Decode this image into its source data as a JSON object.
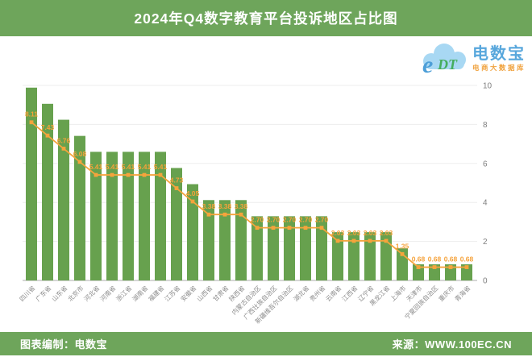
{
  "header": {
    "title": "2024年Q4数字教育平台投诉地区占比图"
  },
  "logo": {
    "brand": "电数宝",
    "tagline": "电商大数据库",
    "monogram": "eDT",
    "cloud_color": "#A8D8F3",
    "brand_color": "#58A7DC",
    "monogram_e_color": "#4D9FD8",
    "monogram_dt_color": "#45AD5E"
  },
  "chart_data": {
    "type": "bar",
    "subtype": "bar-with-line-overlay",
    "title": "2024年Q4数字教育平台投诉地区占比图",
    "categories": [
      "四川省",
      "广东省",
      "山东省",
      "北京市",
      "河北省",
      "河南省",
      "浙江省",
      "湖南省",
      "福建省",
      "江苏省",
      "安徽省",
      "山西省",
      "甘肃省",
      "陕西省",
      "内蒙古自治区",
      "广西壮族自治区",
      "新疆维吾尔自治区",
      "湖北省",
      "贵州省",
      "云南省",
      "江西省",
      "辽宁省",
      "黑龙江省",
      "上海市",
      "天津市",
      "宁夏回族自治区",
      "重庆市",
      "青海省"
    ],
    "values": [
      8.11,
      7.43,
      6.76,
      6.08,
      5.41,
      5.41,
      5.41,
      5.41,
      5.41,
      4.73,
      4.05,
      3.38,
      3.38,
      3.38,
      2.7,
      2.7,
      2.7,
      2.7,
      2.7,
      2.03,
      2.03,
      2.03,
      2.03,
      1.35,
      0.68,
      0.68,
      0.68,
      0.68
    ],
    "labels_decimals": 2,
    "xlabel": "",
    "ylabel": "",
    "ylim": [
      0,
      10
    ],
    "yticks": [
      0,
      2,
      4,
      6,
      8,
      10
    ],
    "grid": true,
    "legend": "none",
    "bar_color": "#67A14E",
    "line_color": "#F5A43C",
    "label_color": "#F5A23A",
    "axis_text_color": "#7F7F7F",
    "category_text_color": "#8C8C8C",
    "gridline_color": "#EDEDED",
    "axis_line_color": "#ADADAD"
  },
  "footer": {
    "left": "图表编制：电数宝",
    "right": "来源：WWW.100EC.CN"
  }
}
